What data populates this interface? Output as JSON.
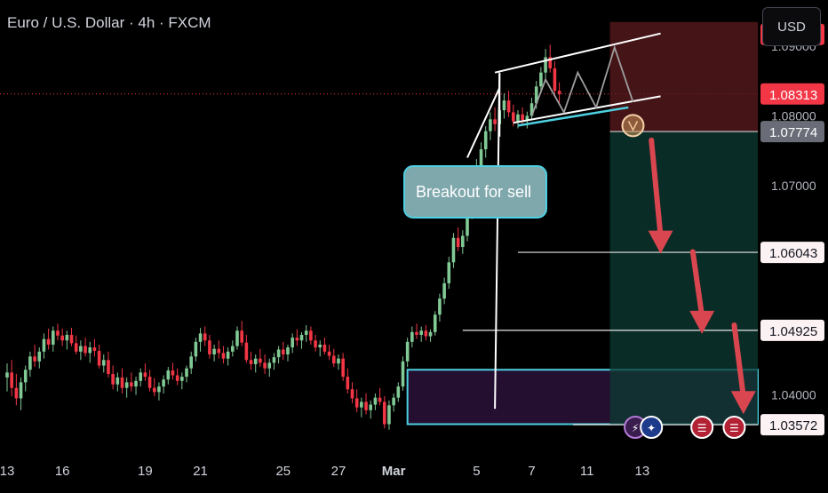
{
  "header": {
    "title": "Euro / U.S. Dollar · 4h · FXCM",
    "currency_button": "USD"
  },
  "annotation": {
    "breakout_label": "Breakout for sell"
  },
  "colors": {
    "up": "#81c995",
    "down": "#f23645",
    "accent": "#4dd0e1",
    "stop_zone": "#5c1b1f",
    "target_zone": "#0c3b33"
  },
  "chart_data": {
    "type": "candlestick",
    "title": "",
    "symbol": "EURUSD",
    "timeframe": "4h",
    "source": "FXCM",
    "y_axis": {
      "ticks": [
        "1.04000",
        "1.07000",
        "1.08000",
        "1.09000"
      ],
      "ylim": [
        1.0323,
        1.0966
      ]
    },
    "price_labels": [
      {
        "label": "1.09167",
        "value": 1.09167,
        "style": "stop"
      },
      {
        "label": "1.08313",
        "value": 1.08313,
        "style": "current"
      },
      {
        "label": "1.07774",
        "value": 1.07774,
        "style": "entry"
      },
      {
        "label": "1.06043",
        "value": 1.06043,
        "style": "target"
      },
      {
        "label": "1.04925",
        "value": 1.04925,
        "style": "target"
      },
      {
        "label": "1.03572",
        "value": 1.03572,
        "style": "target"
      }
    ],
    "x_axis": {
      "ticks": [
        {
          "label": "13",
          "index": 0
        },
        {
          "label": "16",
          "index": 12
        },
        {
          "label": "19",
          "index": 30
        },
        {
          "label": "21",
          "index": 42
        },
        {
          "label": "25",
          "index": 60
        },
        {
          "label": "27",
          "index": 72
        },
        {
          "label": "Mar",
          "index": 84
        },
        {
          "label": "5",
          "index": 102
        },
        {
          "label": "7",
          "index": 114
        },
        {
          "label": "11",
          "index": 126
        },
        {
          "label": "13",
          "index": 138
        }
      ]
    },
    "candles": [
      {
        "o": 1.0425,
        "h": 1.0445,
        "l": 1.0405,
        "c": 1.0432
      },
      {
        "o": 1.0432,
        "h": 1.045,
        "l": 1.0398,
        "c": 1.041
      },
      {
        "o": 1.041,
        "h": 1.043,
        "l": 1.0385,
        "c": 1.0395
      },
      {
        "o": 1.0395,
        "h": 1.0425,
        "l": 1.0378,
        "c": 1.0418
      },
      {
        "o": 1.0418,
        "h": 1.0442,
        "l": 1.0405,
        "c": 1.0436
      },
      {
        "o": 1.0436,
        "h": 1.0462,
        "l": 1.0426,
        "c": 1.0455
      },
      {
        "o": 1.0455,
        "h": 1.0472,
        "l": 1.044,
        "c": 1.0448
      },
      {
        "o": 1.0448,
        "h": 1.0468,
        "l": 1.0438,
        "c": 1.0462
      },
      {
        "o": 1.0462,
        "h": 1.0488,
        "l": 1.0452,
        "c": 1.048
      },
      {
        "o": 1.048,
        "h": 1.0495,
        "l": 1.0465,
        "c": 1.0472
      },
      {
        "o": 1.0472,
        "h": 1.0498,
        "l": 1.0462,
        "c": 1.0492
      },
      {
        "o": 1.0492,
        "h": 1.0502,
        "l": 1.0478,
        "c": 1.0485
      },
      {
        "o": 1.0485,
        "h": 1.0495,
        "l": 1.047,
        "c": 1.0478
      },
      {
        "o": 1.0478,
        "h": 1.0492,
        "l": 1.0465,
        "c": 1.0486
      },
      {
        "o": 1.0486,
        "h": 1.0496,
        "l": 1.047,
        "c": 1.0474
      },
      {
        "o": 1.0474,
        "h": 1.0485,
        "l": 1.0458,
        "c": 1.0462
      },
      {
        "o": 1.0462,
        "h": 1.0478,
        "l": 1.045,
        "c": 1.047
      },
      {
        "o": 1.047,
        "h": 1.0482,
        "l": 1.0455,
        "c": 1.046
      },
      {
        "o": 1.046,
        "h": 1.0476,
        "l": 1.0446,
        "c": 1.0468
      },
      {
        "o": 1.0468,
        "h": 1.048,
        "l": 1.0455,
        "c": 1.0463
      },
      {
        "o": 1.0463,
        "h": 1.0472,
        "l": 1.0438,
        "c": 1.0442
      },
      {
        "o": 1.0442,
        "h": 1.0458,
        "l": 1.0432,
        "c": 1.045
      },
      {
        "o": 1.045,
        "h": 1.0462,
        "l": 1.0425,
        "c": 1.043
      },
      {
        "o": 1.043,
        "h": 1.0442,
        "l": 1.0408,
        "c": 1.0415
      },
      {
        "o": 1.0415,
        "h": 1.0432,
        "l": 1.0405,
        "c": 1.0425
      },
      {
        "o": 1.0425,
        "h": 1.0438,
        "l": 1.0402,
        "c": 1.041
      },
      {
        "o": 1.041,
        "h": 1.0425,
        "l": 1.0396,
        "c": 1.0418
      },
      {
        "o": 1.0418,
        "h": 1.0432,
        "l": 1.0405,
        "c": 1.0412
      },
      {
        "o": 1.0412,
        "h": 1.0426,
        "l": 1.04,
        "c": 1.042
      },
      {
        "o": 1.042,
        "h": 1.0438,
        "l": 1.0412,
        "c": 1.0432
      },
      {
        "o": 1.0432,
        "h": 1.0445,
        "l": 1.042,
        "c": 1.0426
      },
      {
        "o": 1.0426,
        "h": 1.0436,
        "l": 1.0405,
        "c": 1.041
      },
      {
        "o": 1.041,
        "h": 1.0424,
        "l": 1.0398,
        "c": 1.0404
      },
      {
        "o": 1.0404,
        "h": 1.0418,
        "l": 1.0392,
        "c": 1.0412
      },
      {
        "o": 1.0412,
        "h": 1.0428,
        "l": 1.0402,
        "c": 1.0422
      },
      {
        "o": 1.0422,
        "h": 1.044,
        "l": 1.0415,
        "c": 1.0435
      },
      {
        "o": 1.0435,
        "h": 1.0446,
        "l": 1.0422,
        "c": 1.0428
      },
      {
        "o": 1.0428,
        "h": 1.0438,
        "l": 1.0414,
        "c": 1.042
      },
      {
        "o": 1.042,
        "h": 1.0432,
        "l": 1.0408,
        "c": 1.0426
      },
      {
        "o": 1.0426,
        "h": 1.0442,
        "l": 1.0418,
        "c": 1.0438
      },
      {
        "o": 1.0438,
        "h": 1.0462,
        "l": 1.043,
        "c": 1.0455
      },
      {
        "o": 1.0455,
        "h": 1.0482,
        "l": 1.0448,
        "c": 1.0476
      },
      {
        "o": 1.0476,
        "h": 1.0496,
        "l": 1.0462,
        "c": 1.0488
      },
      {
        "o": 1.0488,
        "h": 1.0498,
        "l": 1.047,
        "c": 1.0478
      },
      {
        "o": 1.0478,
        "h": 1.0486,
        "l": 1.0452,
        "c": 1.0458
      },
      {
        "o": 1.0458,
        "h": 1.0472,
        "l": 1.0448,
        "c": 1.0466
      },
      {
        "o": 1.0466,
        "h": 1.0478,
        "l": 1.0452,
        "c": 1.046
      },
      {
        "o": 1.046,
        "h": 1.047,
        "l": 1.0445,
        "c": 1.0452
      },
      {
        "o": 1.0452,
        "h": 1.0468,
        "l": 1.0442,
        "c": 1.0462
      },
      {
        "o": 1.0462,
        "h": 1.0478,
        "l": 1.0455,
        "c": 1.047
      },
      {
        "o": 1.047,
        "h": 1.0498,
        "l": 1.0465,
        "c": 1.0492
      },
      {
        "o": 1.0492,
        "h": 1.0506,
        "l": 1.047,
        "c": 1.0475
      },
      {
        "o": 1.0475,
        "h": 1.0486,
        "l": 1.0446,
        "c": 1.045
      },
      {
        "o": 1.045,
        "h": 1.0462,
        "l": 1.0436,
        "c": 1.0444
      },
      {
        "o": 1.0444,
        "h": 1.0458,
        "l": 1.0432,
        "c": 1.0452
      },
      {
        "o": 1.0452,
        "h": 1.0466,
        "l": 1.044,
        "c": 1.0446
      },
      {
        "o": 1.0446,
        "h": 1.0458,
        "l": 1.043,
        "c": 1.0438
      },
      {
        "o": 1.0438,
        "h": 1.0452,
        "l": 1.0426,
        "c": 1.0446
      },
      {
        "o": 1.0446,
        "h": 1.046,
        "l": 1.0436,
        "c": 1.0454
      },
      {
        "o": 1.0454,
        "h": 1.047,
        "l": 1.0445,
        "c": 1.0465
      },
      {
        "o": 1.0465,
        "h": 1.0476,
        "l": 1.045,
        "c": 1.0458
      },
      {
        "o": 1.0458,
        "h": 1.0472,
        "l": 1.0448,
        "c": 1.0468
      },
      {
        "o": 1.0468,
        "h": 1.0488,
        "l": 1.046,
        "c": 1.0482
      },
      {
        "o": 1.0482,
        "h": 1.0494,
        "l": 1.047,
        "c": 1.0478
      },
      {
        "o": 1.0478,
        "h": 1.049,
        "l": 1.0466,
        "c": 1.0486
      },
      {
        "o": 1.0486,
        "h": 1.05,
        "l": 1.0476,
        "c": 1.0492
      },
      {
        "o": 1.0492,
        "h": 1.0498,
        "l": 1.0472,
        "c": 1.0478
      },
      {
        "o": 1.0478,
        "h": 1.0486,
        "l": 1.0462,
        "c": 1.0468
      },
      {
        "o": 1.0468,
        "h": 1.0478,
        "l": 1.0455,
        "c": 1.0472
      },
      {
        "o": 1.0472,
        "h": 1.0482,
        "l": 1.0458,
        "c": 1.0462
      },
      {
        "o": 1.0462,
        "h": 1.0472,
        "l": 1.045,
        "c": 1.0456
      },
      {
        "o": 1.0456,
        "h": 1.0466,
        "l": 1.044,
        "c": 1.0445
      },
      {
        "o": 1.0445,
        "h": 1.0458,
        "l": 1.0436,
        "c": 1.0452
      },
      {
        "o": 1.0452,
        "h": 1.046,
        "l": 1.042,
        "c": 1.0426
      },
      {
        "o": 1.0426,
        "h": 1.0438,
        "l": 1.0402,
        "c": 1.0408
      },
      {
        "o": 1.0408,
        "h": 1.0418,
        "l": 1.0388,
        "c": 1.0395
      },
      {
        "o": 1.0395,
        "h": 1.0408,
        "l": 1.0375,
        "c": 1.0382
      },
      {
        "o": 1.0382,
        "h": 1.0396,
        "l": 1.0368,
        "c": 1.039
      },
      {
        "o": 1.039,
        "h": 1.0402,
        "l": 1.0372,
        "c": 1.0378
      },
      {
        "o": 1.0378,
        "h": 1.0392,
        "l": 1.0366,
        "c": 1.0386
      },
      {
        "o": 1.0386,
        "h": 1.0402,
        "l": 1.0378,
        "c": 1.0396
      },
      {
        "o": 1.0396,
        "h": 1.041,
        "l": 1.0385,
        "c": 1.039
      },
      {
        "o": 1.039,
        "h": 1.0398,
        "l": 1.0352,
        "c": 1.0358
      },
      {
        "o": 1.0358,
        "h": 1.0392,
        "l": 1.035,
        "c": 1.0385
      },
      {
        "o": 1.0385,
        "h": 1.0402,
        "l": 1.0376,
        "c": 1.0396
      },
      {
        "o": 1.0396,
        "h": 1.0418,
        "l": 1.039,
        "c": 1.0412
      },
      {
        "o": 1.0412,
        "h": 1.0455,
        "l": 1.0406,
        "c": 1.0448
      },
      {
        "o": 1.0448,
        "h": 1.0482,
        "l": 1.044,
        "c": 1.0476
      },
      {
        "o": 1.0476,
        "h": 1.0498,
        "l": 1.0468,
        "c": 1.049
      },
      {
        "o": 1.049,
        "h": 1.0502,
        "l": 1.048,
        "c": 1.0486
      },
      {
        "o": 1.0486,
        "h": 1.0498,
        "l": 1.0476,
        "c": 1.0492
      },
      {
        "o": 1.0492,
        "h": 1.05,
        "l": 1.0478,
        "c": 1.0484
      },
      {
        "o": 1.0484,
        "h": 1.0494,
        "l": 1.0476,
        "c": 1.049
      },
      {
        "o": 1.049,
        "h": 1.052,
        "l": 1.0485,
        "c": 1.0515
      },
      {
        "o": 1.0515,
        "h": 1.0545,
        "l": 1.0505,
        "c": 1.0538
      },
      {
        "o": 1.0538,
        "h": 1.0568,
        "l": 1.053,
        "c": 1.056
      },
      {
        "o": 1.056,
        "h": 1.0598,
        "l": 1.0552,
        "c": 1.059
      },
      {
        "o": 1.059,
        "h": 1.0632,
        "l": 1.0582,
        "c": 1.0625
      },
      {
        "o": 1.0625,
        "h": 1.064,
        "l": 1.0606,
        "c": 1.0612
      },
      {
        "o": 1.0612,
        "h": 1.0636,
        "l": 1.0602,
        "c": 1.0628
      },
      {
        "o": 1.0628,
        "h": 1.0668,
        "l": 1.062,
        "c": 1.066
      },
      {
        "o": 1.066,
        "h": 1.0712,
        "l": 1.0652,
        "c": 1.0705
      },
      {
        "o": 1.0705,
        "h": 1.0738,
        "l": 1.0692,
        "c": 1.0728
      },
      {
        "o": 1.0728,
        "h": 1.0762,
        "l": 1.0715,
        "c": 1.0752
      },
      {
        "o": 1.0752,
        "h": 1.0785,
        "l": 1.074,
        "c": 1.0778
      },
      {
        "o": 1.0778,
        "h": 1.0805,
        "l": 1.0765,
        "c": 1.0795
      },
      {
        "o": 1.0795,
        "h": 1.0812,
        "l": 1.0778,
        "c": 1.0788
      },
      {
        "o": 1.0788,
        "h": 1.0818,
        "l": 1.078,
        "c": 1.0808
      },
      {
        "o": 1.0808,
        "h": 1.0832,
        "l": 1.0796,
        "c": 1.0822
      },
      {
        "o": 1.0822,
        "h": 1.0836,
        "l": 1.0798,
        "c": 1.0805
      },
      {
        "o": 1.0805,
        "h": 1.0816,
        "l": 1.0785,
        "c": 1.0792
      },
      {
        "o": 1.0792,
        "h": 1.0808,
        "l": 1.0782,
        "c": 1.0802
      },
      {
        "o": 1.0802,
        "h": 1.0812,
        "l": 1.0786,
        "c": 1.0794
      },
      {
        "o": 1.0794,
        "h": 1.0806,
        "l": 1.0782,
        "c": 1.08
      },
      {
        "o": 1.08,
        "h": 1.0826,
        "l": 1.0794,
        "c": 1.0818
      },
      {
        "o": 1.0818,
        "h": 1.085,
        "l": 1.081,
        "c": 1.0842
      },
      {
        "o": 1.0842,
        "h": 1.087,
        "l": 1.0832,
        "c": 1.0862
      },
      {
        "o": 1.0862,
        "h": 1.0896,
        "l": 1.085,
        "c": 1.0884
      },
      {
        "o": 1.0884,
        "h": 1.0902,
        "l": 1.0862,
        "c": 1.0868
      },
      {
        "o": 1.0868,
        "h": 1.0878,
        "l": 1.083,
        "c": 1.0836
      },
      {
        "o": 1.0836,
        "h": 1.0848,
        "l": 1.0818,
        "c": 1.0831
      }
    ],
    "zones": {
      "stop": {
        "from": 1.07774,
        "to": 1.09167
      },
      "target": {
        "from": 1.03572,
        "to": 1.07774
      },
      "support_box": {
        "from": 1.0358,
        "to": 1.0436
      }
    }
  }
}
